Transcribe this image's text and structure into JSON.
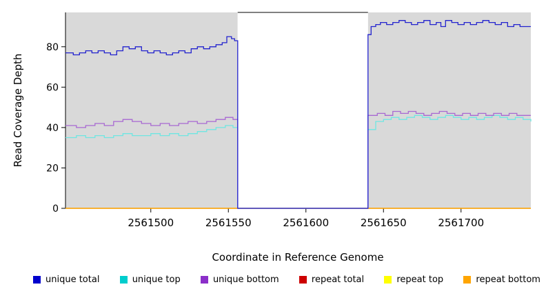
{
  "chart_data": {
    "type": "line",
    "title": "",
    "xlabel": "Coordinate in Reference Genome",
    "ylabel": "Read Coverage Depth",
    "xlim": [
      2561445,
      2561745
    ],
    "ylim": [
      0,
      97
    ],
    "x_ticks": [
      2561500,
      2561550,
      2561600,
      2561650,
      2561700
    ],
    "x_tick_labels": [
      "2561500",
      "2561550",
      "2561600",
      "2561650",
      "2561700"
    ],
    "y_ticks": [
      0,
      20,
      40,
      60,
      80
    ],
    "y_tick_labels": [
      "0",
      "20",
      "40",
      "60",
      "80"
    ],
    "grid": false,
    "step": true,
    "panel_bg": "#d9d9d9",
    "gap_bg": "#ffffff",
    "gap_region": {
      "start": 2561556,
      "end": 2561640
    },
    "axis_color": "#000000",
    "series": [
      {
        "name": "repeat total",
        "color": "#CC0000",
        "points": [
          [
            2561445,
            0
          ],
          [
            2561745,
            0
          ]
        ]
      },
      {
        "name": "repeat top",
        "color": "#FFFF00",
        "points": [
          [
            2561445,
            0
          ],
          [
            2561745,
            0
          ]
        ]
      },
      {
        "name": "repeat bottom",
        "color": "#FFA500",
        "points": [
          [
            2561445,
            0
          ],
          [
            2561745,
            0
          ]
        ]
      },
      {
        "name": "unique top",
        "color": "#6FE6E2",
        "points": [
          [
            2561445,
            35
          ],
          [
            2561452,
            36
          ],
          [
            2561458,
            35
          ],
          [
            2561464,
            36
          ],
          [
            2561470,
            35
          ],
          [
            2561476,
            36
          ],
          [
            2561482,
            37
          ],
          [
            2561488,
            36
          ],
          [
            2561494,
            36
          ],
          [
            2561500,
            37
          ],
          [
            2561506,
            36
          ],
          [
            2561512,
            37
          ],
          [
            2561518,
            36
          ],
          [
            2561524,
            37
          ],
          [
            2561530,
            38
          ],
          [
            2561536,
            39
          ],
          [
            2561542,
            40
          ],
          [
            2561548,
            41
          ],
          [
            2561553,
            40
          ],
          [
            2561556,
            0
          ],
          [
            2561640,
            39
          ],
          [
            2561645,
            43
          ],
          [
            2561650,
            44
          ],
          [
            2561655,
            45
          ],
          [
            2561660,
            44
          ],
          [
            2561665,
            45
          ],
          [
            2561670,
            46
          ],
          [
            2561675,
            45
          ],
          [
            2561680,
            44
          ],
          [
            2561685,
            45
          ],
          [
            2561690,
            46
          ],
          [
            2561695,
            45
          ],
          [
            2561700,
            44
          ],
          [
            2561705,
            45
          ],
          [
            2561710,
            44
          ],
          [
            2561715,
            45
          ],
          [
            2561720,
            46
          ],
          [
            2561725,
            45
          ],
          [
            2561730,
            44
          ],
          [
            2561735,
            45
          ],
          [
            2561740,
            44
          ],
          [
            2561745,
            43
          ]
        ]
      },
      {
        "name": "unique bottom",
        "color": "#A868D2",
        "points": [
          [
            2561445,
            41
          ],
          [
            2561452,
            40
          ],
          [
            2561458,
            41
          ],
          [
            2561464,
            42
          ],
          [
            2561470,
            41
          ],
          [
            2561476,
            43
          ],
          [
            2561482,
            44
          ],
          [
            2561488,
            43
          ],
          [
            2561494,
            42
          ],
          [
            2561500,
            41
          ],
          [
            2561506,
            42
          ],
          [
            2561512,
            41
          ],
          [
            2561518,
            42
          ],
          [
            2561524,
            43
          ],
          [
            2561530,
            42
          ],
          [
            2561536,
            43
          ],
          [
            2561542,
            44
          ],
          [
            2561548,
            45
          ],
          [
            2561553,
            44
          ],
          [
            2561556,
            0
          ],
          [
            2561640,
            46
          ],
          [
            2561646,
            47
          ],
          [
            2561651,
            46
          ],
          [
            2561656,
            48
          ],
          [
            2561661,
            47
          ],
          [
            2561666,
            48
          ],
          [
            2561671,
            47
          ],
          [
            2561676,
            46
          ],
          [
            2561681,
            47
          ],
          [
            2561686,
            48
          ],
          [
            2561691,
            47
          ],
          [
            2561696,
            46
          ],
          [
            2561701,
            47
          ],
          [
            2561706,
            46
          ],
          [
            2561711,
            47
          ],
          [
            2561716,
            46
          ],
          [
            2561721,
            47
          ],
          [
            2561726,
            46
          ],
          [
            2561731,
            47
          ],
          [
            2561736,
            46
          ],
          [
            2561745,
            46
          ]
        ]
      },
      {
        "name": "unique total",
        "color": "#2222CE",
        "points": [
          [
            2561445,
            77
          ],
          [
            2561450,
            76
          ],
          [
            2561454,
            77
          ],
          [
            2561458,
            78
          ],
          [
            2561462,
            77
          ],
          [
            2561466,
            78
          ],
          [
            2561470,
            77
          ],
          [
            2561474,
            76
          ],
          [
            2561478,
            78
          ],
          [
            2561482,
            80
          ],
          [
            2561486,
            79
          ],
          [
            2561490,
            80
          ],
          [
            2561494,
            78
          ],
          [
            2561498,
            77
          ],
          [
            2561502,
            78
          ],
          [
            2561506,
            77
          ],
          [
            2561510,
            76
          ],
          [
            2561514,
            77
          ],
          [
            2561518,
            78
          ],
          [
            2561522,
            77
          ],
          [
            2561526,
            79
          ],
          [
            2561530,
            80
          ],
          [
            2561534,
            79
          ],
          [
            2561538,
            80
          ],
          [
            2561542,
            81
          ],
          [
            2561546,
            82
          ],
          [
            2561549,
            85
          ],
          [
            2561552,
            84
          ],
          [
            2561554,
            83
          ],
          [
            2561556,
            0
          ],
          [
            2561640,
            86
          ],
          [
            2561642,
            90
          ],
          [
            2561645,
            91
          ],
          [
            2561648,
            92
          ],
          [
            2561652,
            91
          ],
          [
            2561656,
            92
          ],
          [
            2561660,
            93
          ],
          [
            2561664,
            92
          ],
          [
            2561668,
            91
          ],
          [
            2561672,
            92
          ],
          [
            2561676,
            93
          ],
          [
            2561680,
            91
          ],
          [
            2561684,
            92
          ],
          [
            2561687,
            90
          ],
          [
            2561690,
            93
          ],
          [
            2561694,
            92
          ],
          [
            2561698,
            91
          ],
          [
            2561702,
            92
          ],
          [
            2561706,
            91
          ],
          [
            2561710,
            92
          ],
          [
            2561714,
            93
          ],
          [
            2561718,
            92
          ],
          [
            2561722,
            91
          ],
          [
            2561726,
            92
          ],
          [
            2561730,
            90
          ],
          [
            2561734,
            91
          ],
          [
            2561738,
            90
          ],
          [
            2561745,
            90
          ]
        ]
      }
    ],
    "legend": {
      "position": "bottom",
      "items": [
        {
          "label": "unique total",
          "color": "#0000CD"
        },
        {
          "label": "unique top",
          "color": "#00CDCD"
        },
        {
          "label": "unique bottom",
          "color": "#8B2FC9"
        },
        {
          "label": "repeat total",
          "color": "#CD0000"
        },
        {
          "label": "repeat top",
          "color": "#FFFF00"
        },
        {
          "label": "repeat bottom",
          "color": "#FFA500"
        }
      ]
    }
  }
}
